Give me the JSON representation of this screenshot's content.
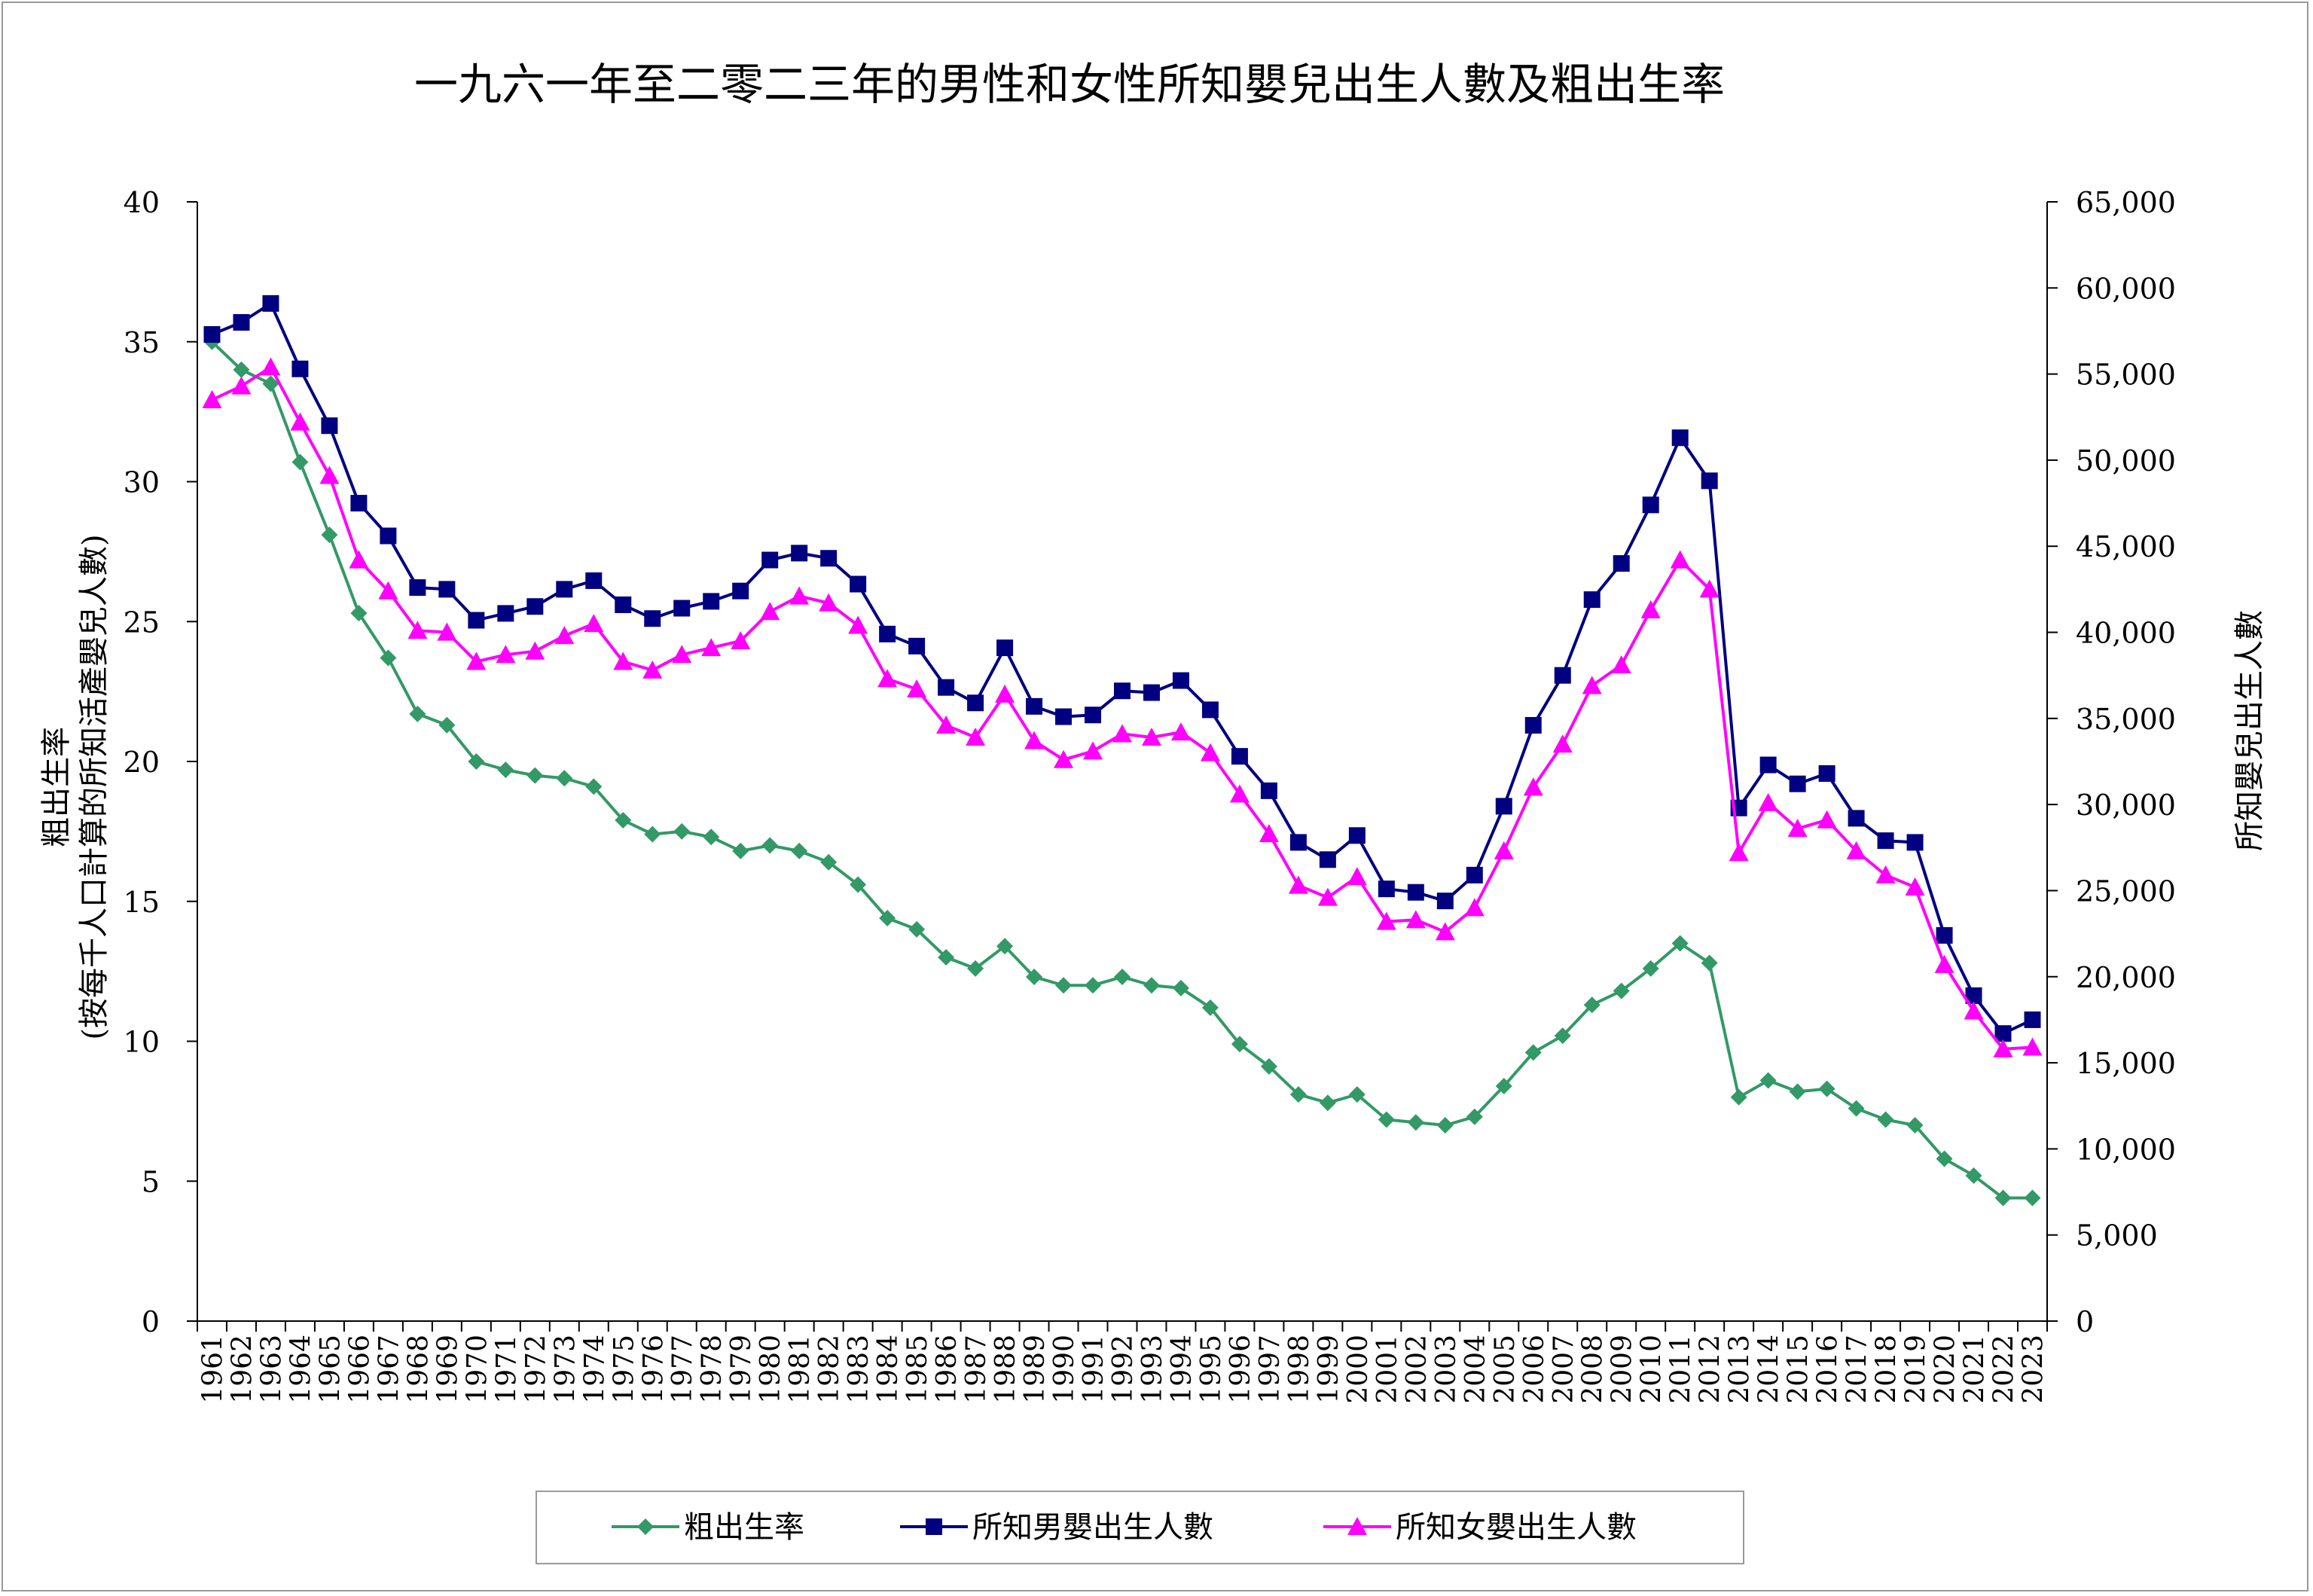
{
  "chart_data": {
    "type": "line",
    "title": "一九六一年至二零二三年的男性和女性所知嬰兒出生人數及粗出生率",
    "ylabel_left_line1": "粗出生率",
    "ylabel_left_line2": "(按每千人口計算的所知活產嬰兒人數)",
    "ylabel_right": "所知嬰兒出生人數",
    "ylim_left": [
      0,
      40
    ],
    "ylim_right": [
      0,
      65000
    ],
    "yticks_left": [
      "0",
      "5",
      "10",
      "15",
      "20",
      "25",
      "30",
      "35",
      "40"
    ],
    "yticks_right": [
      "0",
      "5,000",
      "10,000",
      "15,000",
      "20,000",
      "25,000",
      "30,000",
      "35,000",
      "40,000",
      "45,000",
      "50,000",
      "55,000",
      "60,000",
      "65,000"
    ],
    "legend_position": "bottom",
    "grid": false,
    "x": [
      "1961",
      "1962",
      "1963",
      "1964",
      "1965",
      "1966",
      "1967",
      "1968",
      "1969",
      "1970",
      "1971",
      "1972",
      "1973",
      "1974",
      "1975",
      "1976",
      "1977",
      "1978",
      "1979",
      "1980",
      "1981",
      "1982",
      "1983",
      "1984",
      "1985",
      "1986",
      "1987",
      "1988",
      "1989",
      "1990",
      "1991",
      "1992",
      "1993",
      "1994",
      "1995",
      "1996",
      "1997",
      "1998",
      "1999",
      "2000",
      "2001",
      "2002",
      "2003",
      "2004",
      "2005",
      "2006",
      "2007",
      "2008",
      "2009",
      "2010",
      "2011",
      "2012",
      "2013",
      "2014",
      "2015",
      "2016",
      "2017",
      "2018",
      "2019",
      "2020",
      "2021",
      "2022",
      "2023"
    ],
    "series": [
      {
        "name": "粗出生率",
        "axis": "left",
        "color": "#339966",
        "marker": "diamond",
        "values": [
          35.0,
          34.0,
          33.5,
          30.7,
          28.1,
          25.3,
          23.7,
          21.7,
          21.3,
          20.0,
          19.7,
          19.5,
          19.4,
          19.1,
          17.9,
          17.4,
          17.5,
          17.3,
          16.8,
          17.0,
          16.8,
          16.4,
          15.6,
          14.4,
          14.0,
          13.0,
          12.6,
          13.4,
          12.3,
          12.0,
          12.0,
          12.3,
          12.0,
          11.9,
          11.2,
          9.9,
          9.1,
          8.1,
          7.8,
          8.1,
          7.2,
          7.1,
          7.0,
          7.3,
          8.4,
          9.6,
          10.2,
          11.3,
          11.8,
          12.6,
          13.5,
          12.8,
          8.0,
          8.6,
          8.2,
          8.3,
          7.6,
          7.2,
          7.0,
          5.8,
          5.2,
          4.4,
          4.4
        ]
      },
      {
        "name": "所知男嬰出生人數",
        "axis": "right",
        "color": "#000080",
        "marker": "square",
        "values": [
          57300,
          58000,
          59100,
          55300,
          52000,
          47500,
          45600,
          42600,
          42500,
          40700,
          41100,
          41500,
          42500,
          43000,
          41600,
          40800,
          41400,
          41800,
          42400,
          44200,
          44600,
          44300,
          42800,
          39900,
          39200,
          36800,
          35900,
          39100,
          35700,
          35100,
          35200,
          36600,
          36500,
          37200,
          35500,
          32800,
          30800,
          27800,
          26800,
          28200,
          25100,
          24900,
          24400,
          25900,
          29900,
          34600,
          37500,
          41900,
          44000,
          47400,
          51300,
          48800,
          29800,
          32300,
          31200,
          31800,
          29200,
          27900,
          27800,
          22400,
          18900,
          16700,
          17500
        ]
      },
      {
        "name": "所知女嬰出生人數",
        "axis": "right",
        "color": "#ff00ff",
        "marker": "triangle",
        "values": [
          53500,
          54300,
          55400,
          52200,
          49100,
          44200,
          42400,
          40100,
          40000,
          38300,
          38700,
          38900,
          39800,
          40500,
          38300,
          37800,
          38700,
          39100,
          39500,
          41200,
          42100,
          41700,
          40400,
          37300,
          36700,
          34600,
          33900,
          36400,
          33700,
          32600,
          33100,
          34100,
          33900,
          34200,
          33000,
          30600,
          28300,
          25300,
          24600,
          25800,
          23200,
          23300,
          22600,
          24000,
          27300,
          31000,
          33500,
          36900,
          38100,
          41300,
          44200,
          42500,
          27200,
          30100,
          28600,
          29100,
          27300,
          25900,
          25200,
          20700,
          18000,
          15800,
          15900
        ]
      }
    ]
  }
}
